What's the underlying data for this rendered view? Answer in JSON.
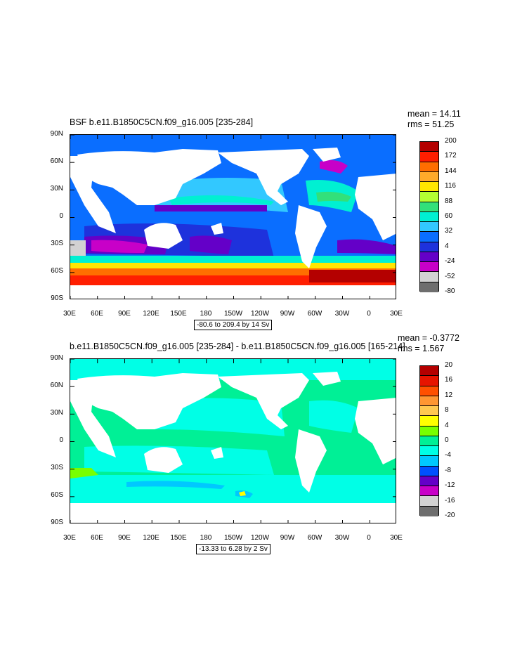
{
  "panels": [
    {
      "title": "BSF b.e11.B1850C5CN.f09_g16.005 [235-284]",
      "mean": "mean = 14.11",
      "rms": "rms = 51.25",
      "range": "-80.6 to 209.4 by 14 Sv",
      "colorbar_labels": [
        "200",
        "172",
        "144",
        "116",
        "88",
        "60",
        "32",
        "4",
        "-24",
        "-52",
        "-80"
      ],
      "colorbar_colors": [
        "#b40000",
        "#ff1e00",
        "#ff6e00",
        "#ffaa2a",
        "#ffe600",
        "#b4ff32",
        "#32e07a",
        "#00f0d2",
        "#32c8ff",
        "#0a6eff",
        "#1e32dc",
        "#6400c8",
        "#c800c8",
        "#d2d2d2",
        "#6e6e6e"
      ]
    },
    {
      "title": "b.e11.B1850C5CN.f09_g16.005 [235-284] - b.e11.B1850C5CN.f09_g16.005 [165-214]",
      "mean": "mean = -0.3772",
      "rms": "rms = 1.567",
      "range": "-13.33 to 6.28 by 2 Sv",
      "colorbar_labels": [
        "20",
        "16",
        "12",
        "8",
        "4",
        "0",
        "-4",
        "-8",
        "-12",
        "-16",
        "-20"
      ],
      "colorbar_colors": [
        "#b40000",
        "#e61400",
        "#ff5000",
        "#ff9632",
        "#ffc850",
        "#ffff00",
        "#78ff00",
        "#00f096",
        "#00ffe6",
        "#00c8ff",
        "#0050ff",
        "#6400c8",
        "#c800c8",
        "#d2d2d2",
        "#6e6e6e"
      ]
    }
  ],
  "lat_labels": [
    "90N",
    "60N",
    "30N",
    "0",
    "30S",
    "60S",
    "90S"
  ],
  "lon_labels": [
    "30E",
    "60E",
    "90E",
    "120E",
    "150E",
    "180",
    "150W",
    "120W",
    "90W",
    "60W",
    "30W",
    "0",
    "30E"
  ]
}
